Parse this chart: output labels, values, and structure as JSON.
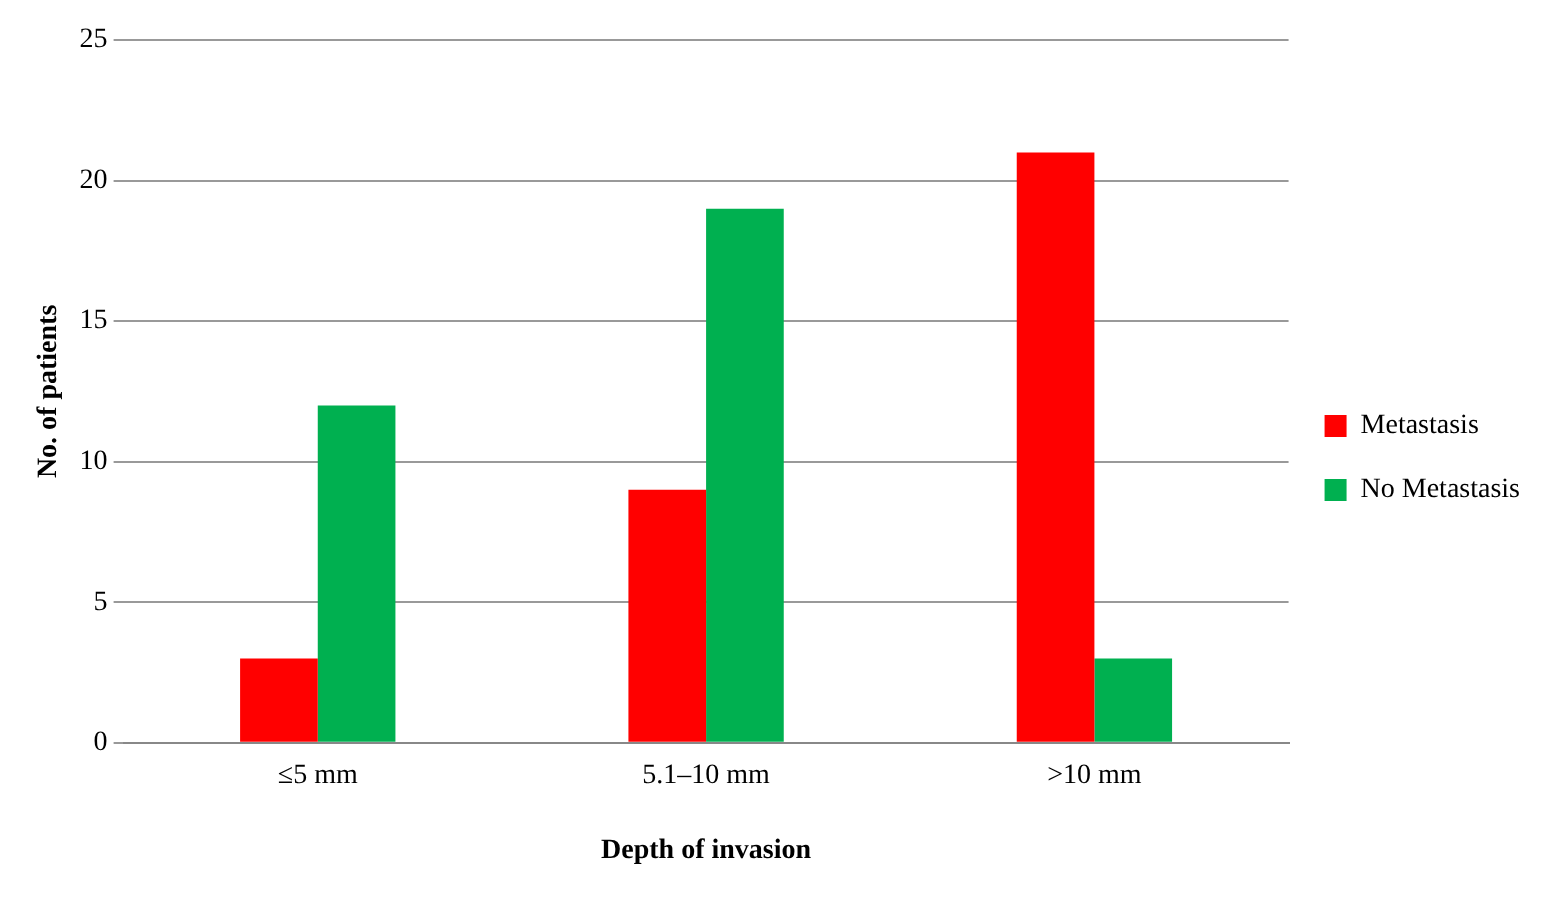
{
  "chart_data": {
    "type": "bar",
    "xlabel": "Depth of invasion",
    "ylabel": "No. of patients",
    "categories": [
      "≤5 mm",
      "5.1–10 mm",
      ">10 mm"
    ],
    "series": [
      {
        "name": "Metastasis",
        "color": "#ff0000",
        "values": [
          3,
          9,
          21
        ]
      },
      {
        "name": "No Metastasis",
        "color": "#00b050",
        "values": [
          12,
          19,
          3
        ]
      }
    ],
    "ylim": [
      0,
      25
    ],
    "yticks": [
      0,
      5,
      10,
      15,
      20,
      25
    ],
    "grid": "y",
    "legend": "right"
  }
}
